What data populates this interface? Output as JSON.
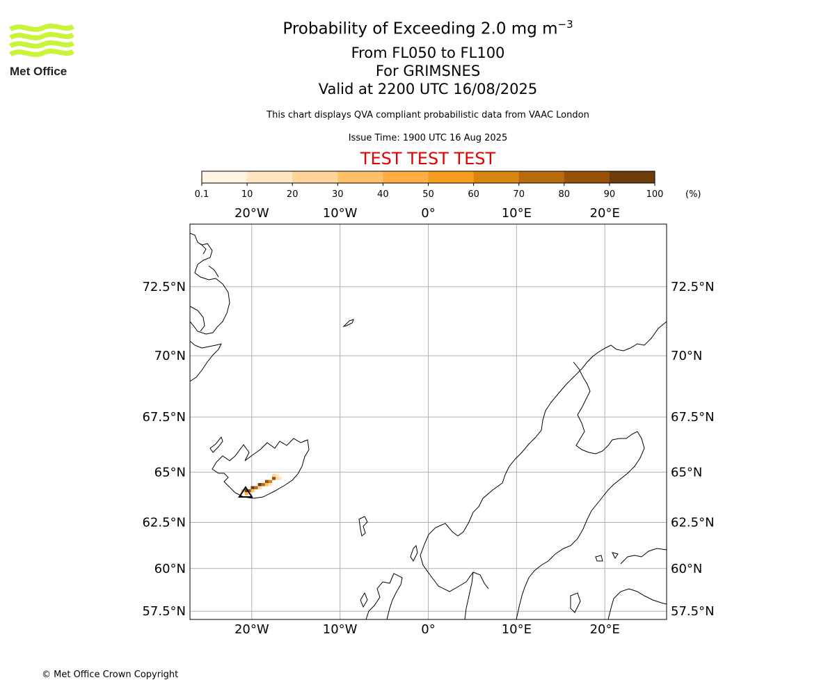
{
  "header": {
    "title_prefix": "Probability of Exceeding 2.0 mg m",
    "title_exponent": "−3",
    "level_range": "From FL050 to FL100",
    "volcano": "For GRIMSNES",
    "valid_time": "Valid at 2200 UTC 16/08/2025",
    "caption": "This chart displays QVA compliant probabilistic data from VAAC London",
    "issue_time": "Issue Time: 1900 UTC 16 Aug 2025",
    "test_banner": "TEST TEST TEST",
    "test_banner_color": "#e00000"
  },
  "logo": {
    "text": "Met Office",
    "wave_color": "#c8f53a"
  },
  "colorbar": {
    "unit_label": "(%)",
    "ticks": [
      "0.1",
      "10",
      "20",
      "30",
      "40",
      "50",
      "60",
      "70",
      "80",
      "90",
      "100"
    ],
    "colors": [
      "#fff3e3",
      "#ffe5c2",
      "#ffd49b",
      "#ffc06a",
      "#ffae41",
      "#f59c1f",
      "#d98511",
      "#b96a0b",
      "#955208",
      "#6f3b06"
    ]
  },
  "map": {
    "projection": "plate carree",
    "lon_range": [
      -27,
      27
    ],
    "lat_range": [
      57,
      74.5
    ],
    "lon_ticks": [
      "20°W",
      "10°W",
      "0°",
      "10°E",
      "20°E"
    ],
    "lat_ticks": [
      "72.5°N",
      "70°N",
      "67.5°N",
      "65°N",
      "62.5°N",
      "60°N",
      "57.5°N"
    ],
    "gridlines": true,
    "gridline_color": "#b0b0b0",
    "coastline_color": "#000000",
    "volcano_marker": "triangle",
    "plume_cells": [
      {
        "lon": -20.6,
        "lat": 64.1,
        "pct": 95
      },
      {
        "lon": -20.2,
        "lat": 64.1,
        "pct": 85
      },
      {
        "lon": -19.9,
        "lat": 64.25,
        "pct": 90
      },
      {
        "lon": -19.5,
        "lat": 64.25,
        "pct": 75
      },
      {
        "lon": -19.1,
        "lat": 64.4,
        "pct": 95
      },
      {
        "lon": -18.7,
        "lat": 64.4,
        "pct": 70
      },
      {
        "lon": -18.3,
        "lat": 64.55,
        "pct": 85
      },
      {
        "lon": -17.9,
        "lat": 64.55,
        "pct": 65
      },
      {
        "lon": -17.5,
        "lat": 64.7,
        "pct": 80
      },
      {
        "lon": -17.1,
        "lat": 64.7,
        "pct": 25
      },
      {
        "lon": -17.1,
        "lat": 64.85,
        "pct": 15
      },
      {
        "lon": -17.5,
        "lat": 64.85,
        "pct": 20
      },
      {
        "lon": -16.8,
        "lat": 64.7,
        "pct": 12
      },
      {
        "lon": -18.3,
        "lat": 64.4,
        "pct": 30
      },
      {
        "lon": -17.9,
        "lat": 64.4,
        "pct": 15
      },
      {
        "lon": -20.6,
        "lat": 63.95,
        "pct": 40
      },
      {
        "lon": -19.9,
        "lat": 64.1,
        "pct": 35
      },
      {
        "lon": -19.1,
        "lat": 64.25,
        "pct": 25
      },
      {
        "lon": -21.0,
        "lat": 64.1,
        "pct": 30
      }
    ]
  },
  "footer": {
    "copyright": "© Met Office Crown Copyright"
  }
}
